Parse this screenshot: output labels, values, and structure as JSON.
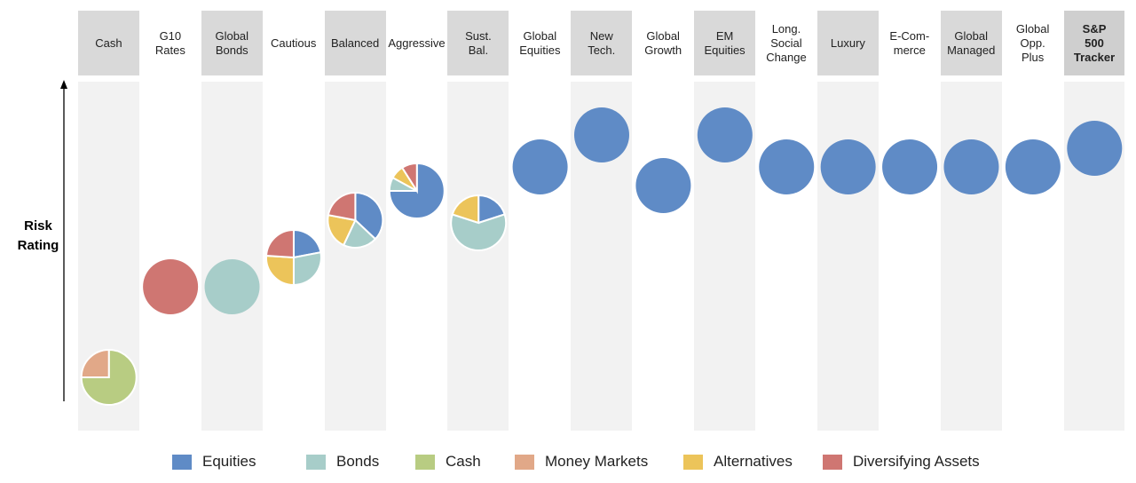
{
  "chart_data": {
    "type": "pie-scatter",
    "ylabel": "Risk Rating",
    "colors": {
      "Equities": "#5f8bc6",
      "Bonds": "#a7cdc9",
      "Cash": "#b8cc82",
      "Money Markets": "#e1a888",
      "Alternatives": "#ecc45a",
      "Diversifying Assets": "#cf7672"
    },
    "legend": [
      "Equities",
      "Bonds",
      "Cash",
      "Money Markets",
      "Alternatives",
      "Diversifying Assets"
    ],
    "funds": [
      {
        "name": "Cash",
        "risk": 1.0,
        "mix": [
          [
            "Cash",
            75
          ],
          [
            "Money Markets",
            25
          ]
        ]
      },
      {
        "name": "G10\nRates",
        "risk": 4.4,
        "mix": [
          [
            "Diversifying Assets",
            100
          ]
        ]
      },
      {
        "name": "Global\nBonds",
        "risk": 4.4,
        "mix": [
          [
            "Bonds",
            100
          ]
        ]
      },
      {
        "name": "Cautious",
        "risk": 5.5,
        "mix": [
          [
            "Equities",
            22
          ],
          [
            "Bonds",
            28
          ],
          [
            "Alternatives",
            26
          ],
          [
            "Diversifying Assets",
            24
          ]
        ]
      },
      {
        "name": "Balanced",
        "risk": 6.9,
        "mix": [
          [
            "Equities",
            37
          ],
          [
            "Bonds",
            20
          ],
          [
            "Alternatives",
            21
          ],
          [
            "Diversifying Assets",
            22
          ]
        ]
      },
      {
        "name": "Aggressive",
        "risk": 8.0,
        "mix": [
          [
            "Equities",
            75
          ],
          [
            "Bonds",
            8
          ],
          [
            "Alternatives",
            8
          ],
          [
            "Diversifying Assets",
            9
          ]
        ]
      },
      {
        "name": "Sust.\nBal.",
        "risk": 6.8,
        "mix": [
          [
            "Equities",
            20
          ],
          [
            "Bonds",
            60
          ],
          [
            "Alternatives",
            20
          ]
        ]
      },
      {
        "name": "Global\nEquities",
        "risk": 8.9,
        "mix": [
          [
            "Equities",
            100
          ]
        ]
      },
      {
        "name": "New\nTech.",
        "risk": 10.1,
        "mix": [
          [
            "Equities",
            100
          ]
        ]
      },
      {
        "name": "Global\nGrowth",
        "risk": 8.2,
        "mix": [
          [
            "Equities",
            100
          ]
        ]
      },
      {
        "name": "EM\nEquities",
        "risk": 10.1,
        "mix": [
          [
            "Equities",
            100
          ]
        ]
      },
      {
        "name": "Long.\nSocial\nChange",
        "risk": 8.9,
        "mix": [
          [
            "Equities",
            100
          ]
        ]
      },
      {
        "name": "Luxury",
        "risk": 8.9,
        "mix": [
          [
            "Equities",
            100
          ]
        ]
      },
      {
        "name": "E-Com-\nmerce",
        "risk": 8.9,
        "mix": [
          [
            "Equities",
            100
          ]
        ]
      },
      {
        "name": "Global\nManaged",
        "risk": 8.9,
        "mix": [
          [
            "Equities",
            100
          ]
        ]
      },
      {
        "name": "Global\nOpp.\nPlus",
        "risk": 8.9,
        "mix": [
          [
            "Equities",
            100
          ]
        ]
      },
      {
        "name": "S&P\n500\nTracker",
        "risk": 9.6,
        "mix": [
          [
            "Equities",
            100
          ]
        ]
      }
    ]
  }
}
